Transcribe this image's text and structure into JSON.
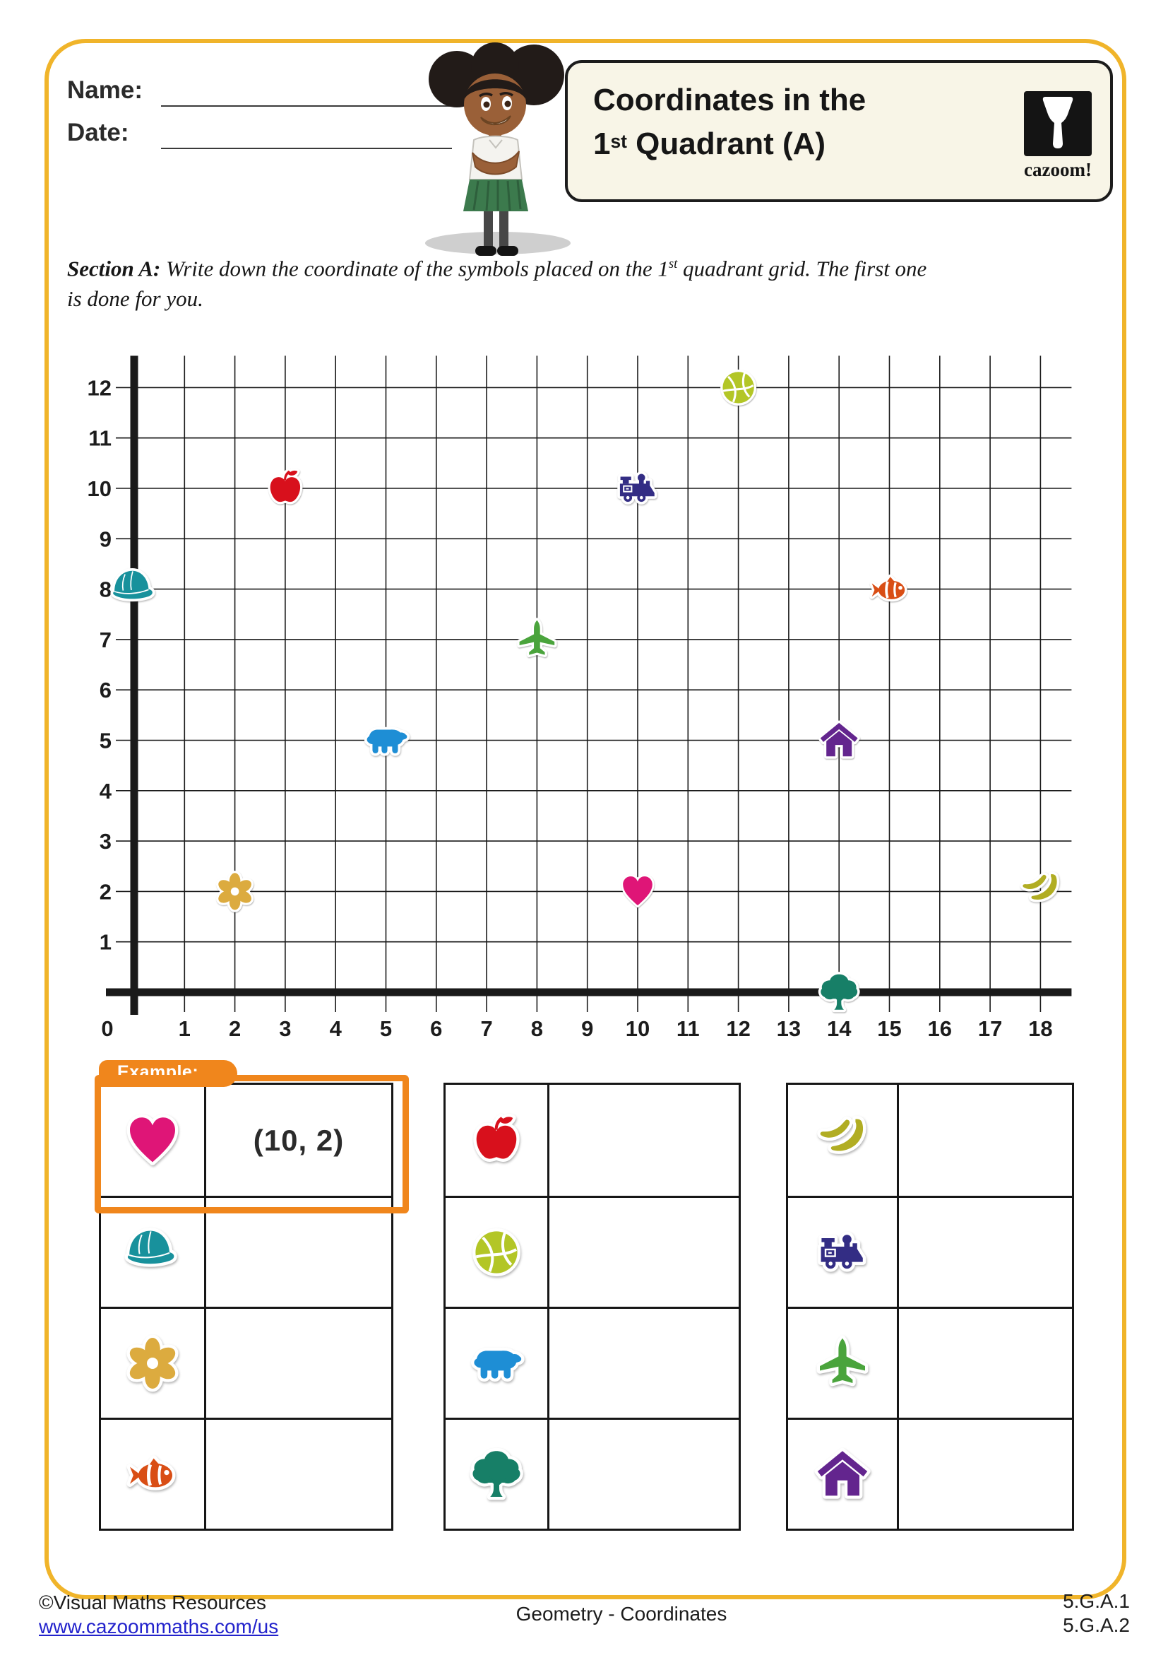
{
  "page": {
    "border_color": "#f0b42a",
    "background": "#ffffff"
  },
  "header": {
    "name_label": "Name:",
    "date_label": "Date:",
    "title_line1": "Coordinates in the",
    "title_line2_num": "1",
    "title_line2_sup": "st",
    "title_line2_rest": " Quadrant (A)",
    "logo_text": "cazoom!"
  },
  "section_a": {
    "label": "Section A:",
    "line1_pre": "  Write down the coordinate of the symbols placed on the 1",
    "line1_sup": "st",
    "line1_post": " quadrant grid. The first one",
    "line2": "is done for you."
  },
  "chart_data": {
    "type": "scatter",
    "title": "",
    "xlabel": "",
    "ylabel": "",
    "x_range": [
      0,
      18
    ],
    "y_range": [
      0,
      12
    ],
    "x_tick_step": 1,
    "y_tick_step": 1,
    "grid": true,
    "points": [
      {
        "symbol": "cap",
        "color": "#18919c",
        "x": 0,
        "y": 8
      },
      {
        "symbol": "flower",
        "color": "#dcab3f",
        "x": 2,
        "y": 2
      },
      {
        "symbol": "apple",
        "color": "#d8101c",
        "x": 3,
        "y": 10
      },
      {
        "symbol": "bear",
        "color": "#1e8ed5",
        "x": 5,
        "y": 5
      },
      {
        "symbol": "airplane",
        "color": "#4aa43c",
        "x": 8,
        "y": 7
      },
      {
        "symbol": "train",
        "color": "#332d84",
        "x": 10,
        "y": 10
      },
      {
        "symbol": "heart",
        "color": "#df1577",
        "x": 10,
        "y": 2
      },
      {
        "symbol": "basketball",
        "color": "#b3c626",
        "x": 12,
        "y": 12
      },
      {
        "symbol": "house",
        "color": "#63258e",
        "x": 14,
        "y": 5
      },
      {
        "symbol": "tree",
        "color": "#177f67",
        "x": 14,
        "y": 0
      },
      {
        "symbol": "fish",
        "color": "#d94e15",
        "x": 15,
        "y": 8
      },
      {
        "symbol": "banana",
        "color": "#b1ad23",
        "x": 18,
        "y": 2
      }
    ]
  },
  "example": {
    "tab_label": "Example:",
    "border_color": "#f0861c"
  },
  "tables": [
    {
      "rows": [
        {
          "symbol": "heart",
          "answer": "(10, 2)",
          "example": true
        },
        {
          "symbol": "cap",
          "answer": ""
        },
        {
          "symbol": "flower",
          "answer": ""
        },
        {
          "symbol": "fish",
          "answer": ""
        }
      ]
    },
    {
      "rows": [
        {
          "symbol": "apple",
          "answer": ""
        },
        {
          "symbol": "basketball",
          "answer": ""
        },
        {
          "symbol": "bear",
          "answer": ""
        },
        {
          "symbol": "tree",
          "answer": ""
        }
      ]
    },
    {
      "rows": [
        {
          "symbol": "banana",
          "answer": ""
        },
        {
          "symbol": "train",
          "answer": ""
        },
        {
          "symbol": "airplane",
          "answer": ""
        },
        {
          "symbol": "house",
          "answer": ""
        }
      ]
    }
  ],
  "footer": {
    "copyright": "©Visual Maths Resources",
    "link": "www.cazoommaths.com/us",
    "center": "Geometry - Coordinates",
    "standards": [
      "5.G.A.1",
      "5.G.A.2"
    ]
  }
}
